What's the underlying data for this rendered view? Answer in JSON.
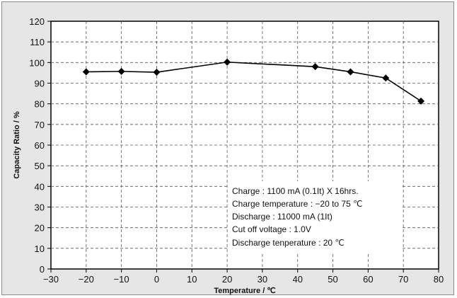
{
  "chart_data": {
    "type": "line",
    "xlabel": "Temperature / ℃",
    "ylabel": "Capacity Ratio / %",
    "xlim": [
      -30,
      80
    ],
    "ylim": [
      0,
      120
    ],
    "x_ticks": [
      -30,
      -20,
      -10,
      0,
      10,
      20,
      30,
      40,
      50,
      60,
      70,
      80
    ],
    "y_ticks": [
      0,
      10,
      20,
      30,
      40,
      50,
      60,
      70,
      80,
      90,
      100,
      110,
      120
    ],
    "x_tick_labels": [
      "−30",
      "−20",
      "−10",
      "0",
      "10",
      "20",
      "30",
      "40",
      "50",
      "60",
      "70",
      "80"
    ],
    "y_tick_labels": [
      "0",
      "10",
      "20",
      "30",
      "40",
      "50",
      "60",
      "70",
      "80",
      "90",
      "100",
      "110",
      "120"
    ],
    "grid": true,
    "marker": "diamond",
    "series": [
      {
        "x": [
          -20,
          -10,
          0,
          20,
          45,
          55,
          65,
          75
        ],
        "y": [
          95.5,
          95.7,
          95.3,
          100.2,
          98.0,
          95.5,
          92.5,
          81.3
        ],
        "color": "#000000"
      }
    ],
    "annotations": [
      "Charge : 1100 mA (0.1It) X 16hrs.",
      "Charge temperature : −20 to 75 ℃",
      "Discharge : 11000 mA (1It)",
      "Cut off voltage : 1.0V",
      "Discharge tenperature : 20 ℃"
    ]
  }
}
